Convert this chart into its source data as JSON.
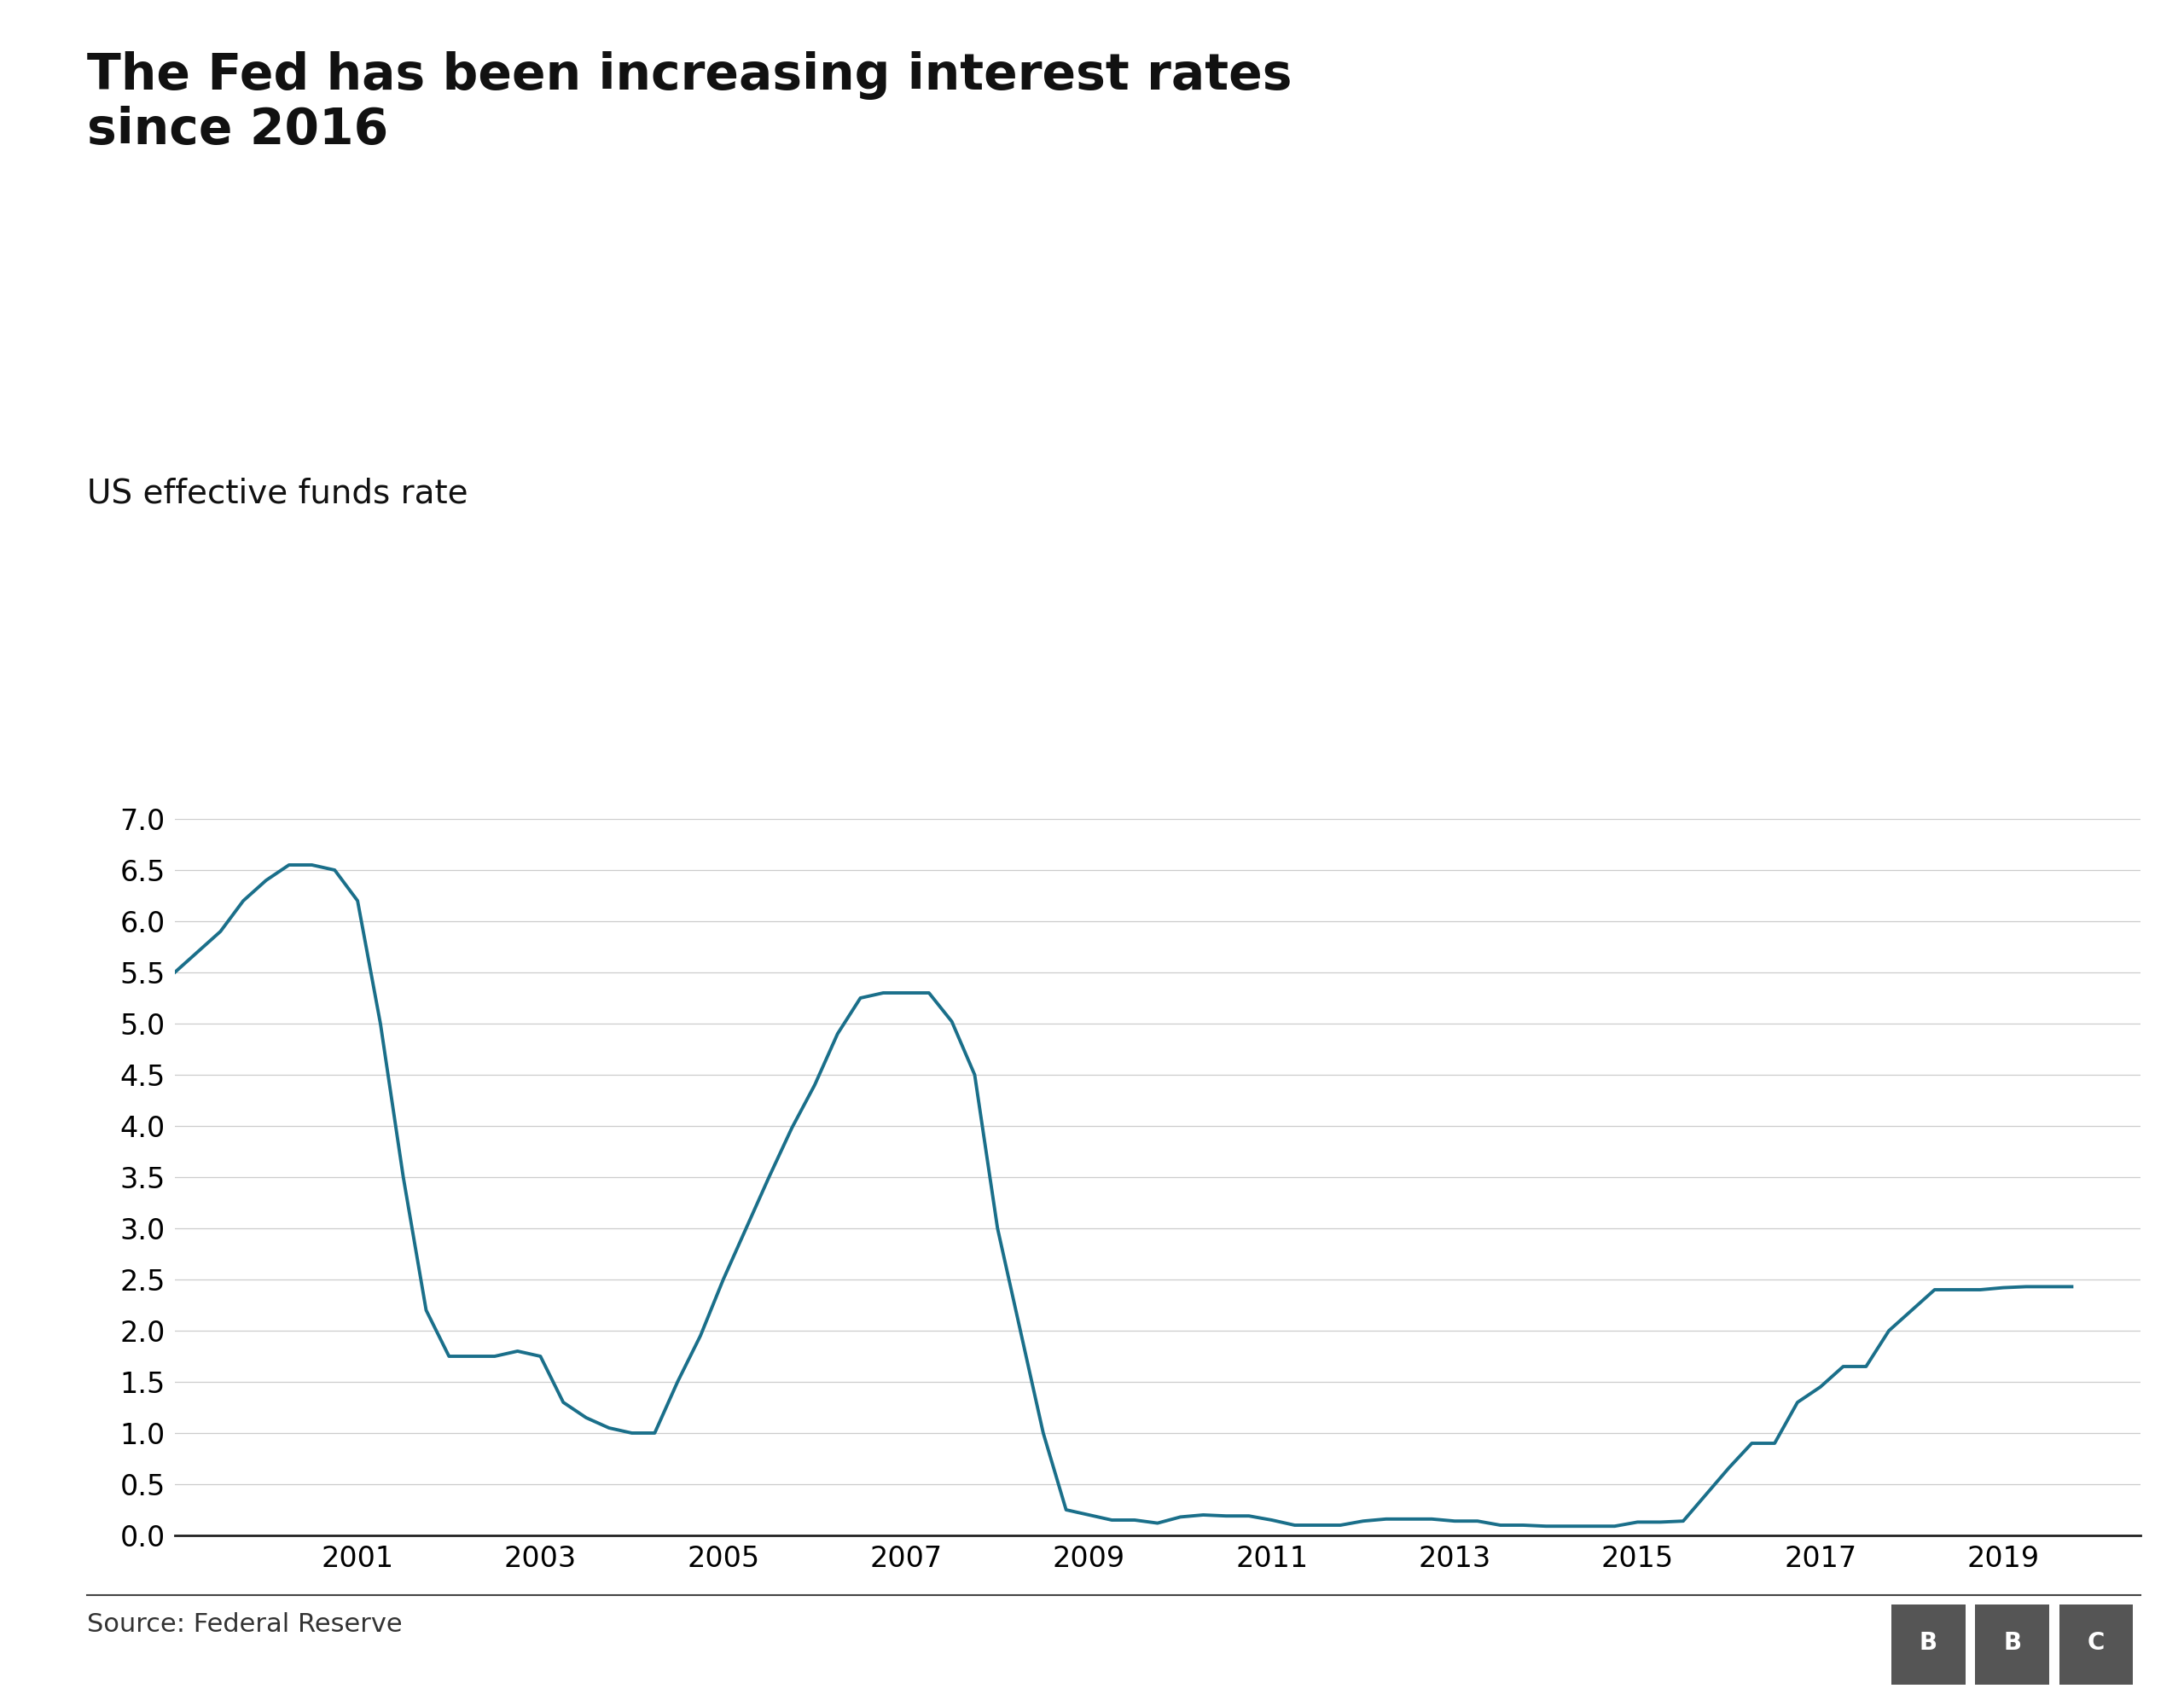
{
  "title": "The Fed has been increasing interest rates\nsince 2016",
  "subtitle": "US effective funds rate",
  "source": "Source: Federal Reserve",
  "line_color": "#1a6f8a",
  "background_color": "#ffffff",
  "title_fontsize": 42,
  "subtitle_fontsize": 28,
  "source_fontsize": 22,
  "tick_fontsize": 24,
  "ylim": [
    0,
    7.0
  ],
  "yticks": [
    0.0,
    0.5,
    1.0,
    1.5,
    2.0,
    2.5,
    3.0,
    3.5,
    4.0,
    4.5,
    5.0,
    5.5,
    6.0,
    6.5,
    7.0
  ],
  "xticks_years": [
    2001,
    2003,
    2005,
    2007,
    2009,
    2011,
    2013,
    2015,
    2017,
    2019
  ],
  "xlim": [
    1999.0,
    2020.5
  ],
  "data": {
    "x": [
      1999.0,
      1999.25,
      1999.5,
      1999.75,
      2000.0,
      2000.25,
      2000.5,
      2000.75,
      2001.0,
      2001.25,
      2001.5,
      2001.75,
      2002.0,
      2002.25,
      2002.5,
      2002.75,
      2003.0,
      2003.25,
      2003.5,
      2003.75,
      2004.0,
      2004.25,
      2004.5,
      2004.75,
      2005.0,
      2005.25,
      2005.5,
      2005.75,
      2006.0,
      2006.25,
      2006.5,
      2006.75,
      2007.0,
      2007.25,
      2007.5,
      2007.75,
      2008.0,
      2008.25,
      2008.5,
      2008.75,
      2009.0,
      2009.25,
      2009.5,
      2009.75,
      2010.0,
      2010.25,
      2010.5,
      2010.75,
      2011.0,
      2011.25,
      2011.5,
      2011.75,
      2012.0,
      2012.25,
      2012.5,
      2012.75,
      2013.0,
      2013.25,
      2013.5,
      2013.75,
      2014.0,
      2014.25,
      2014.5,
      2014.75,
      2015.0,
      2015.25,
      2015.5,
      2015.75,
      2016.0,
      2016.25,
      2016.5,
      2016.75,
      2017.0,
      2017.25,
      2017.5,
      2017.75,
      2018.0,
      2018.25,
      2018.5,
      2018.75,
      2019.0,
      2019.25,
      2019.5,
      2019.75
    ],
    "y": [
      5.5,
      5.7,
      5.9,
      6.2,
      6.4,
      6.55,
      6.55,
      6.5,
      6.2,
      5.0,
      3.5,
      2.2,
      1.75,
      1.75,
      1.75,
      1.8,
      1.75,
      1.3,
      1.15,
      1.05,
      1.0,
      1.0,
      1.5,
      1.95,
      2.5,
      3.0,
      3.5,
      3.98,
      4.4,
      4.9,
      5.25,
      5.3,
      5.3,
      5.3,
      5.02,
      4.5,
      3.0,
      2.0,
      1.0,
      0.25,
      0.2,
      0.15,
      0.15,
      0.12,
      0.18,
      0.2,
      0.19,
      0.19,
      0.15,
      0.1,
      0.1,
      0.1,
      0.14,
      0.16,
      0.16,
      0.16,
      0.14,
      0.14,
      0.1,
      0.1,
      0.09,
      0.09,
      0.09,
      0.09,
      0.13,
      0.13,
      0.14,
      0.4,
      0.66,
      0.9,
      0.9,
      1.3,
      1.45,
      1.65,
      1.65,
      2.0,
      2.2,
      2.4,
      2.4,
      2.4,
      2.42,
      2.43,
      2.43,
      2.43
    ]
  }
}
